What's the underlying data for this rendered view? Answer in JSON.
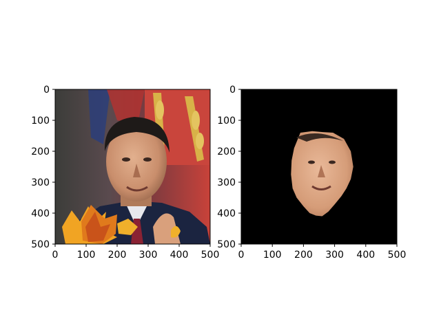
{
  "chart_data": [
    {
      "type": "image",
      "title": "",
      "xlabel": "",
      "ylabel": "",
      "xlim": [
        0,
        500
      ],
      "ylim": [
        500,
        0
      ],
      "xticks": [
        0,
        100,
        200,
        300,
        400,
        500
      ],
      "yticks": [
        0,
        100,
        200,
        300,
        400,
        500
      ],
      "grid": false,
      "content": "photo-with-leaf-overlay"
    },
    {
      "type": "image",
      "title": "",
      "xlabel": "",
      "ylabel": "",
      "xlim": [
        0,
        500
      ],
      "ylim": [
        500,
        0
      ],
      "xticks": [
        0,
        100,
        200,
        300,
        400,
        500
      ],
      "yticks": [
        0,
        100,
        200,
        300,
        400,
        500
      ],
      "grid": false,
      "content": "segmented-face-mask",
      "background_color": "#000000",
      "face_outline": [
        [
          190,
          140
        ],
        [
          228,
          135
        ],
        [
          262,
          138
        ],
        [
          295,
          140
        ],
        [
          330,
          160
        ],
        [
          352,
          200
        ],
        [
          360,
          250
        ],
        [
          352,
          290
        ],
        [
          338,
          320
        ],
        [
          322,
          345
        ],
        [
          300,
          372
        ],
        [
          280,
          395
        ],
        [
          260,
          410
        ],
        [
          240,
          408
        ],
        [
          220,
          400
        ],
        [
          200,
          378
        ],
        [
          178,
          350
        ],
        [
          165,
          320
        ],
        [
          160,
          275
        ],
        [
          162,
          230
        ],
        [
          170,
          190
        ]
      ]
    }
  ]
}
